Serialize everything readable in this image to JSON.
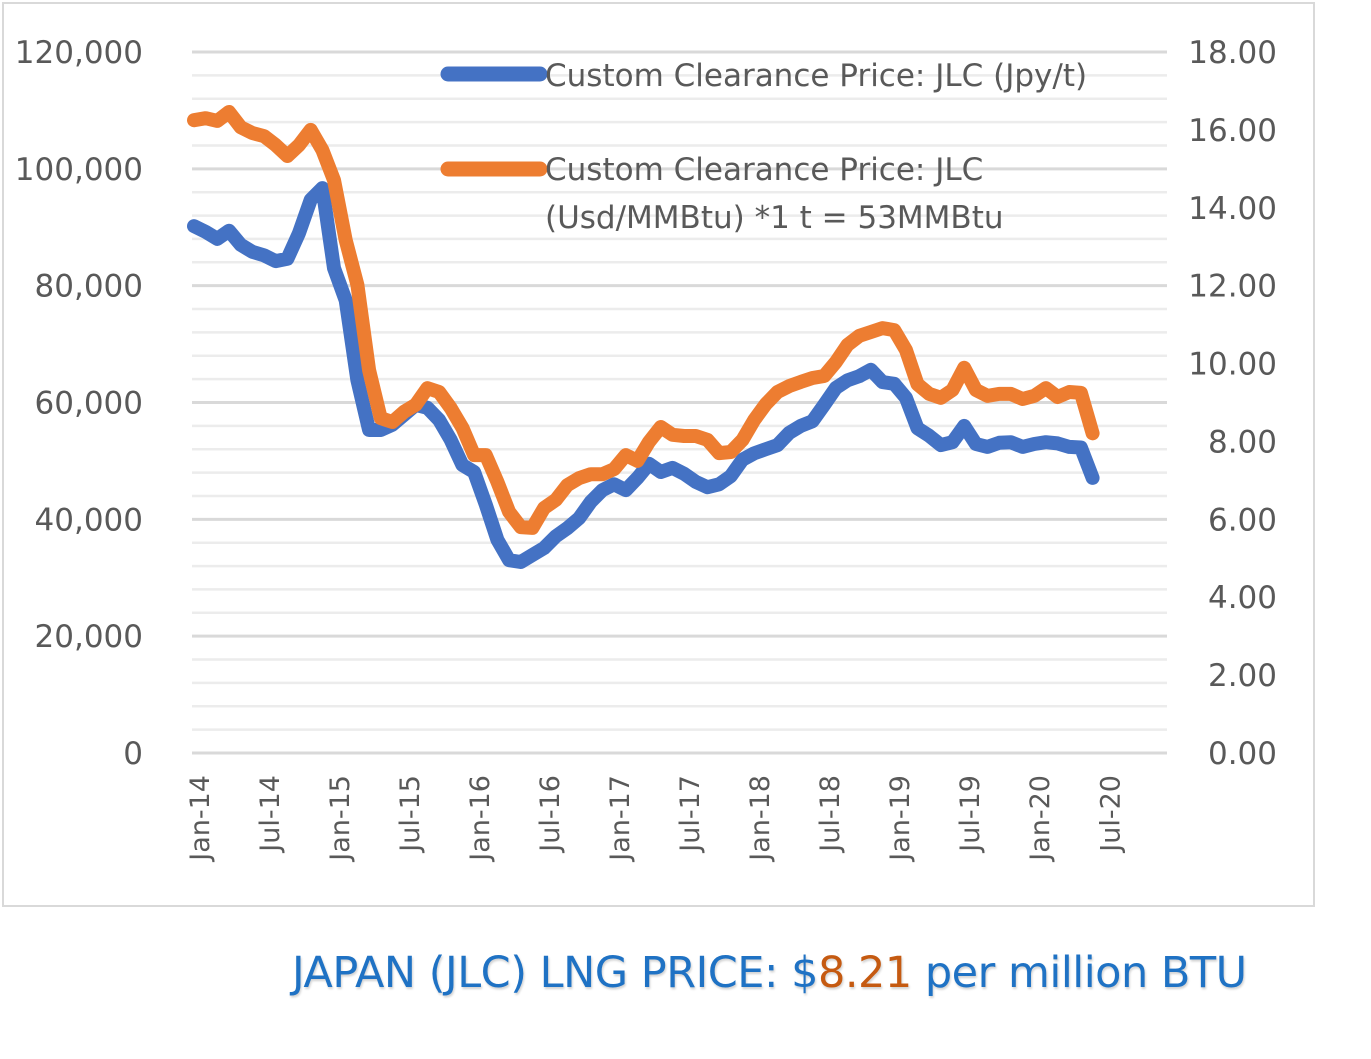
{
  "chart_data": {
    "type": "line",
    "title": "JAPAN (JLC) LNG PRICE: $8.21 per million BTU",
    "caption": {
      "prefix": "JAPAN (JLC) LNG PRICE: $",
      "highlight": "8.21",
      "suffix": " per million BTU",
      "prefix_color": "#1f72c4",
      "highlight_color": "#c55a11"
    },
    "xlabel": "",
    "ylabel_left": "",
    "ylabel_right": "",
    "x_start": "Jan-14",
    "x_end": "Jun-20",
    "x_tick_labels": [
      "Jan-14",
      "Jul-14",
      "Jan-15",
      "Jul-15",
      "Jan-16",
      "Jul-16",
      "Jan-17",
      "Jul-17",
      "Jan-18",
      "Jul-18",
      "Jan-19",
      "Jul-19",
      "Jan-20",
      "Jul-20"
    ],
    "y_left": {
      "ticks": [
        "0",
        "20,000",
        "40,000",
        "60,000",
        "80,000",
        "100,000",
        "120,000"
      ],
      "range": [
        0,
        120000
      ],
      "major_step": 20000,
      "minor_step": 4000
    },
    "y_right": {
      "ticks": [
        "0.00",
        "2.00",
        "4.00",
        "6.00",
        "8.00",
        "10.00",
        "12.00",
        "14.00",
        "16.00",
        "18.00"
      ],
      "range": [
        0,
        18
      ]
    },
    "grid": true,
    "legend_position": "top-right",
    "series": [
      {
        "name": "Custom Clearance Price: JLC (Jpy/t)",
        "axis": "left",
        "color": "#4472c4",
        "values": [
          90200,
          89200,
          88000,
          89400,
          87000,
          85800,
          85200,
          84200,
          84600,
          89000,
          94700,
          96700,
          83000,
          77500,
          63800,
          55300,
          55300,
          56200,
          57900,
          59600,
          59100,
          57000,
          53600,
          49300,
          48100,
          42500,
          36500,
          33000,
          32700,
          33900,
          35100,
          37100,
          38500,
          40200,
          43000,
          45000,
          46000,
          45000,
          47100,
          49500,
          48100,
          48800,
          47800,
          46400,
          45500,
          46000,
          47400,
          50200,
          51300,
          52000,
          52700,
          54800,
          56000,
          56800,
          59600,
          62500,
          63800,
          64500,
          65600,
          63500,
          63200,
          60800,
          55600,
          54300,
          52700,
          53200,
          56000,
          52900,
          52400,
          53100,
          53200,
          52400,
          52900,
          53200,
          53000,
          52400,
          52300,
          47100
        ]
      },
      {
        "name": "Custom Clearance Price: JLC (Usd/MMBtu) *1 t = 53MMBtu",
        "legend_lines": [
          "Custom Clearance Price: JLC",
          "(Usd/MMBtu) *1 t = 53MMBtu"
        ],
        "axis": "right",
        "color": "#ed7d31",
        "values": [
          16.25,
          16.3,
          16.23,
          16.46,
          16.07,
          15.92,
          15.84,
          15.61,
          15.33,
          15.61,
          16.0,
          15.48,
          14.71,
          13.17,
          12.02,
          9.83,
          8.6,
          8.5,
          8.76,
          8.94,
          9.37,
          9.27,
          8.86,
          8.35,
          7.65,
          7.65,
          6.96,
          6.19,
          5.8,
          5.78,
          6.29,
          6.5,
          6.88,
          7.06,
          7.16,
          7.16,
          7.29,
          7.65,
          7.5,
          7.99,
          8.37,
          8.17,
          8.14,
          8.14,
          8.04,
          7.7,
          7.73,
          8.04,
          8.55,
          8.96,
          9.27,
          9.42,
          9.53,
          9.63,
          9.68,
          10.04,
          10.48,
          10.71,
          10.81,
          10.91,
          10.86,
          10.35,
          9.47,
          9.22,
          9.12,
          9.32,
          9.89,
          9.32,
          9.17,
          9.22,
          9.22,
          9.09,
          9.17,
          9.37,
          9.14,
          9.27,
          9.25,
          8.21
        ]
      }
    ]
  }
}
